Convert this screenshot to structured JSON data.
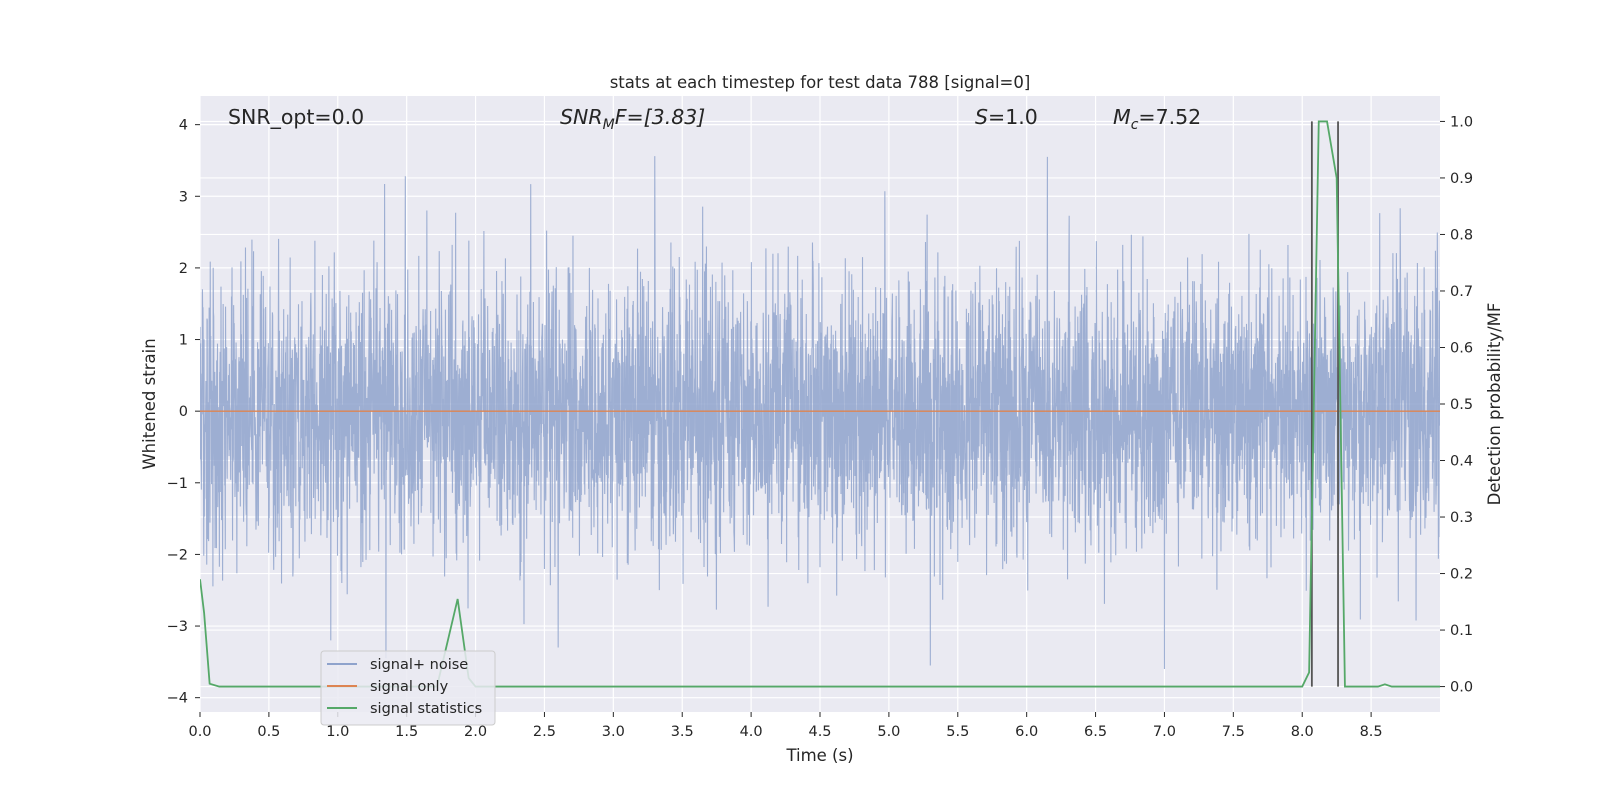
{
  "chart_data": {
    "type": "line",
    "title": "stats at each timestep for test data 788 [signal=0]",
    "xlabel": "Time (s)",
    "ylabel": "Whitened strain",
    "y2label": "Detection probability/MF",
    "xlim": [
      0.0,
      9.0
    ],
    "ylim": [
      -4.2,
      4.4
    ],
    "y2lim": [
      -0.045,
      1.045
    ],
    "xticks": [
      "0.0",
      "0.5",
      "1.0",
      "1.5",
      "2.0",
      "2.5",
      "3.0",
      "3.5",
      "4.0",
      "4.5",
      "5.0",
      "5.5",
      "6.0",
      "6.5",
      "7.0",
      "7.5",
      "8.0",
      "8.5"
    ],
    "yticks": [
      "4",
      "3",
      "2",
      "1",
      "0",
      "−1",
      "−2",
      "−3",
      "−4"
    ],
    "y2ticks": [
      "1.0",
      "0.9",
      "0.8",
      "0.7",
      "0.6",
      "0.5",
      "0.4",
      "0.3",
      "0.2",
      "0.1",
      "0.0"
    ],
    "grid": true,
    "legend_position": "lower-left",
    "annotations": {
      "snr_opt": "SNR_opt=0.0",
      "snr_mf_sym": "SNR",
      "snr_mf_sub": "M",
      "snr_mf_rest": "F=[3.83]",
      "s_sym": "S",
      "s_rest": "=1.0",
      "mc_sym": "M",
      "mc_sub": "c",
      "mc_rest": "=7.52"
    },
    "series": [
      {
        "name": "signal+ noise",
        "color": "#8fa3cc",
        "axis": "left",
        "kind": "noise",
        "sample_rate": 512,
        "core_amplitude": 1.0,
        "peaks": [
          {
            "x": 1.49,
            "y": 3.28
          },
          {
            "x": 3.3,
            "y": 3.56
          },
          {
            "x": 6.15,
            "y": 3.55
          },
          {
            "x": 2.4,
            "y": 3.17
          },
          {
            "x": 4.97,
            "y": 3.07
          },
          {
            "x": 5.3,
            "y": -3.55
          },
          {
            "x": 7.0,
            "y": -3.6
          },
          {
            "x": 2.6,
            "y": -3.3
          },
          {
            "x": 0.95,
            "y": -3.2
          },
          {
            "x": 1.35,
            "y": -3.45
          }
        ]
      },
      {
        "name": "signal only",
        "color": "#dd8452",
        "axis": "left",
        "kind": "constant",
        "value": 0.0
      },
      {
        "name": "signal statistics",
        "color": "#55a868",
        "axis": "right",
        "kind": "line",
        "points": [
          [
            0.0,
            0.19
          ],
          [
            0.03,
            0.13
          ],
          [
            0.07,
            0.005
          ],
          [
            0.14,
            0.0
          ],
          [
            1.72,
            0.0
          ],
          [
            1.87,
            0.155
          ],
          [
            1.95,
            0.015
          ],
          [
            2.0,
            0.0
          ],
          [
            8.0,
            0.0
          ],
          [
            8.05,
            0.025
          ],
          [
            8.12,
            1.0
          ],
          [
            8.18,
            1.0
          ],
          [
            8.25,
            0.9
          ],
          [
            8.31,
            0.0
          ],
          [
            8.55,
            0.0
          ],
          [
            8.6,
            0.004
          ],
          [
            8.65,
            0.0
          ],
          [
            9.0,
            0.0
          ]
        ]
      }
    ],
    "vertical_markers": [
      {
        "x": 8.07,
        "color": "#555555"
      },
      {
        "x": 8.26,
        "color": "#555555"
      }
    ]
  }
}
